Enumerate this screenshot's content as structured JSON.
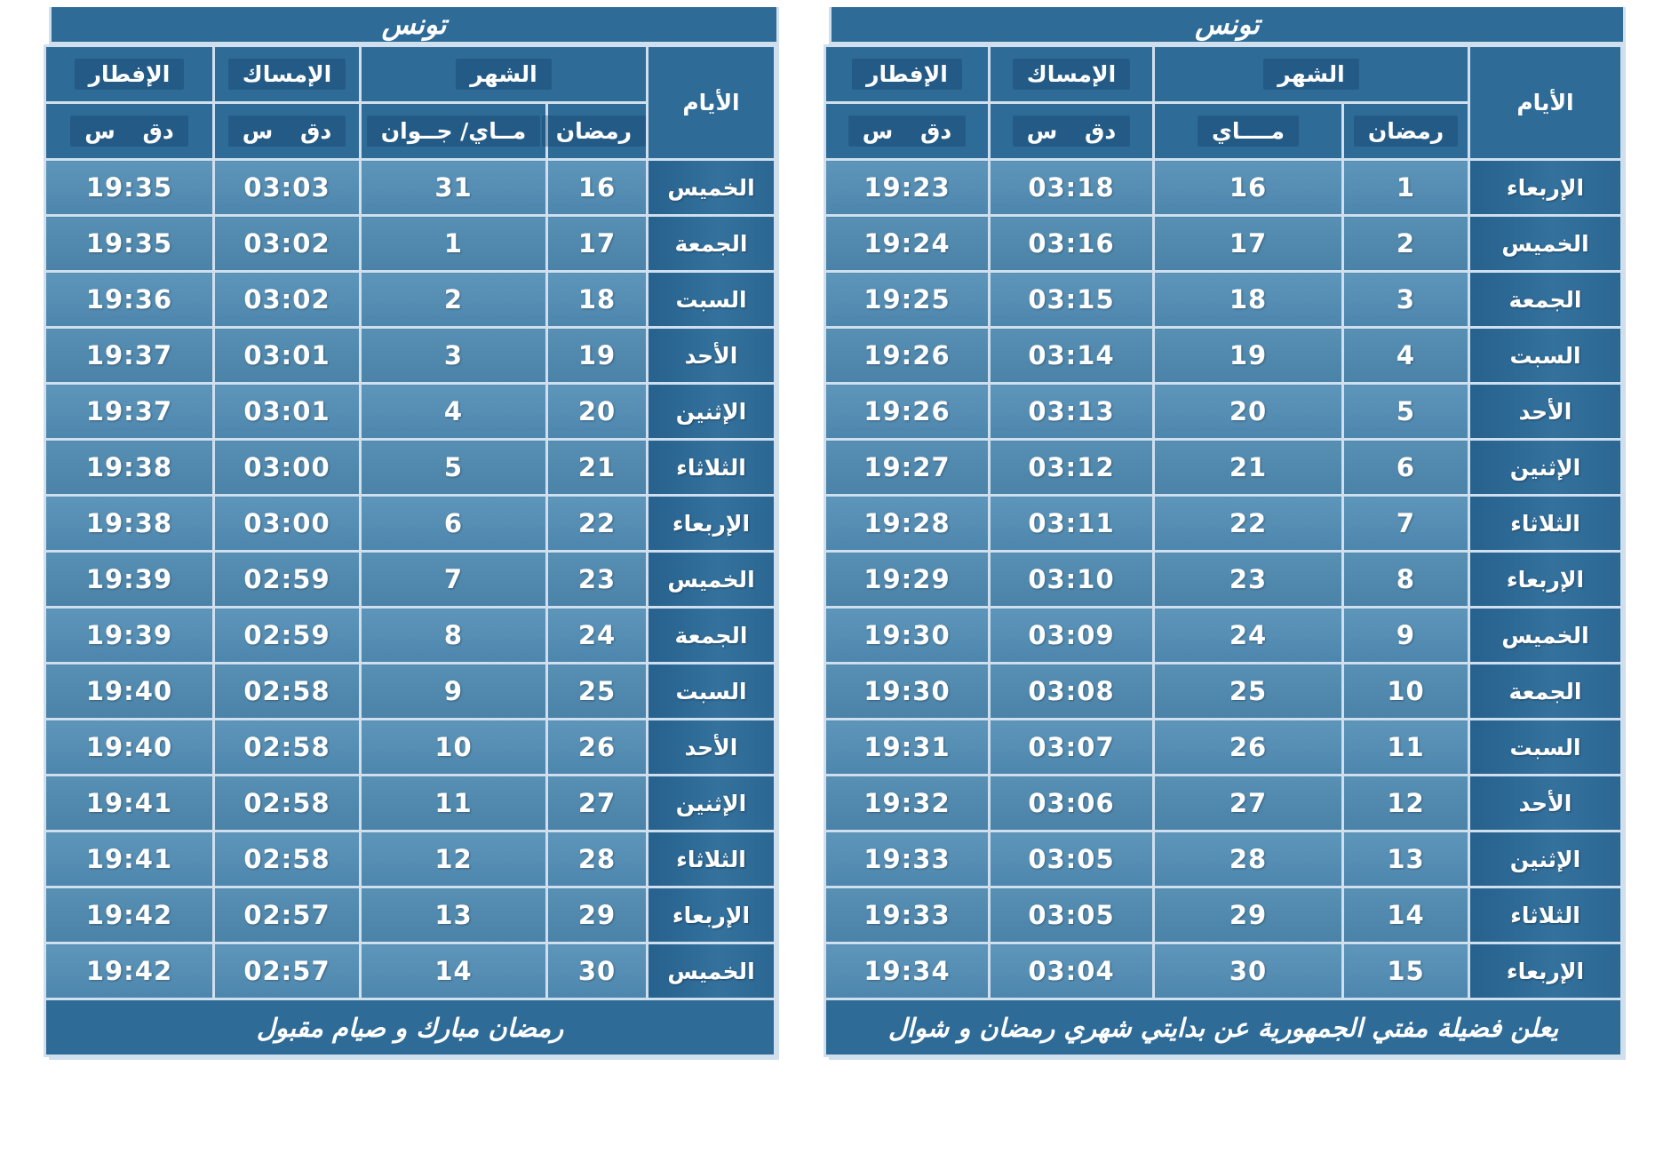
{
  "colors": {
    "header": "#2e6b97",
    "cell": "#4d86ad",
    "cell_light": "#5e95ba",
    "grid": "#cfdfee",
    "ink": "#ffffff"
  },
  "tables": [
    {
      "position": "left",
      "title": "تونس",
      "header": {
        "days": "الأيام",
        "month": "الشهر",
        "ramadan": "رمضان",
        "civil": "مــاي/ جــوان",
        "imsak": "الإمساك",
        "iftar": "الإفطار",
        "unit": "دق س"
      },
      "rows": [
        {
          "day": "الخميس",
          "ramadan": "16",
          "civil": "31",
          "imsak": "03:03",
          "iftar": "19:35"
        },
        {
          "day": "الجمعة",
          "ramadan": "17",
          "civil": "1",
          "imsak": "03:02",
          "iftar": "19:35"
        },
        {
          "day": "السبت",
          "ramadan": "18",
          "civil": "2",
          "imsak": "03:02",
          "iftar": "19:36"
        },
        {
          "day": "الأحد",
          "ramadan": "19",
          "civil": "3",
          "imsak": "03:01",
          "iftar": "19:37"
        },
        {
          "day": "الإثنين",
          "ramadan": "20",
          "civil": "4",
          "imsak": "03:01",
          "iftar": "19:37"
        },
        {
          "day": "الثلاثاء",
          "ramadan": "21",
          "civil": "5",
          "imsak": "03:00",
          "iftar": "19:38"
        },
        {
          "day": "الإربعاء",
          "ramadan": "22",
          "civil": "6",
          "imsak": "03:00",
          "iftar": "19:38"
        },
        {
          "day": "الخميس",
          "ramadan": "23",
          "civil": "7",
          "imsak": "02:59",
          "iftar": "19:39"
        },
        {
          "day": "الجمعة",
          "ramadan": "24",
          "civil": "8",
          "imsak": "02:59",
          "iftar": "19:39"
        },
        {
          "day": "السبت",
          "ramadan": "25",
          "civil": "9",
          "imsak": "02:58",
          "iftar": "19:40"
        },
        {
          "day": "الأحد",
          "ramadan": "26",
          "civil": "10",
          "imsak": "02:58",
          "iftar": "19:40"
        },
        {
          "day": "الإثنين",
          "ramadan": "27",
          "civil": "11",
          "imsak": "02:58",
          "iftar": "19:41"
        },
        {
          "day": "الثلاثاء",
          "ramadan": "28",
          "civil": "12",
          "imsak": "02:58",
          "iftar": "19:41"
        },
        {
          "day": "الإربعاء",
          "ramadan": "29",
          "civil": "13",
          "imsak": "02:57",
          "iftar": "19:42"
        },
        {
          "day": "الخميس",
          "ramadan": "30",
          "civil": "14",
          "imsak": "02:57",
          "iftar": "19:42"
        }
      ],
      "footer": "رمضان مبارك و صيام مقبول"
    },
    {
      "position": "right",
      "title": "تونس",
      "header": {
        "days": "الأيام",
        "month": "الشهر",
        "ramadan": "رمضان",
        "civil": "مــــاي",
        "imsak": "الإمساك",
        "iftar": "الإفطار",
        "unit": "دق س"
      },
      "rows": [
        {
          "day": "الإربعاء",
          "ramadan": "1",
          "civil": "16",
          "imsak": "03:18",
          "iftar": "19:23"
        },
        {
          "day": "الخميس",
          "ramadan": "2",
          "civil": "17",
          "imsak": "03:16",
          "iftar": "19:24"
        },
        {
          "day": "الجمعة",
          "ramadan": "3",
          "civil": "18",
          "imsak": "03:15",
          "iftar": "19:25"
        },
        {
          "day": "السبت",
          "ramadan": "4",
          "civil": "19",
          "imsak": "03:14",
          "iftar": "19:26"
        },
        {
          "day": "الأحد",
          "ramadan": "5",
          "civil": "20",
          "imsak": "03:13",
          "iftar": "19:26"
        },
        {
          "day": "الإثنين",
          "ramadan": "6",
          "civil": "21",
          "imsak": "03:12",
          "iftar": "19:27"
        },
        {
          "day": "الثلاثاء",
          "ramadan": "7",
          "civil": "22",
          "imsak": "03:11",
          "iftar": "19:28"
        },
        {
          "day": "الإربعاء",
          "ramadan": "8",
          "civil": "23",
          "imsak": "03:10",
          "iftar": "19:29"
        },
        {
          "day": "الخميس",
          "ramadan": "9",
          "civil": "24",
          "imsak": "03:09",
          "iftar": "19:30"
        },
        {
          "day": "الجمعة",
          "ramadan": "10",
          "civil": "25",
          "imsak": "03:08",
          "iftar": "19:30"
        },
        {
          "day": "السبت",
          "ramadan": "11",
          "civil": "26",
          "imsak": "03:07",
          "iftar": "19:31"
        },
        {
          "day": "الأحد",
          "ramadan": "12",
          "civil": "27",
          "imsak": "03:06",
          "iftar": "19:32"
        },
        {
          "day": "الإثنين",
          "ramadan": "13",
          "civil": "28",
          "imsak": "03:05",
          "iftar": "19:33"
        },
        {
          "day": "الثلاثاء",
          "ramadan": "14",
          "civil": "29",
          "imsak": "03:05",
          "iftar": "19:33"
        },
        {
          "day": "الإربعاء",
          "ramadan": "15",
          "civil": "30",
          "imsak": "03:04",
          "iftar": "19:34"
        }
      ],
      "footer": "يعلن فضيلة مفتي الجمهورية عن بدايتي شهري رمضان و شوال"
    }
  ]
}
